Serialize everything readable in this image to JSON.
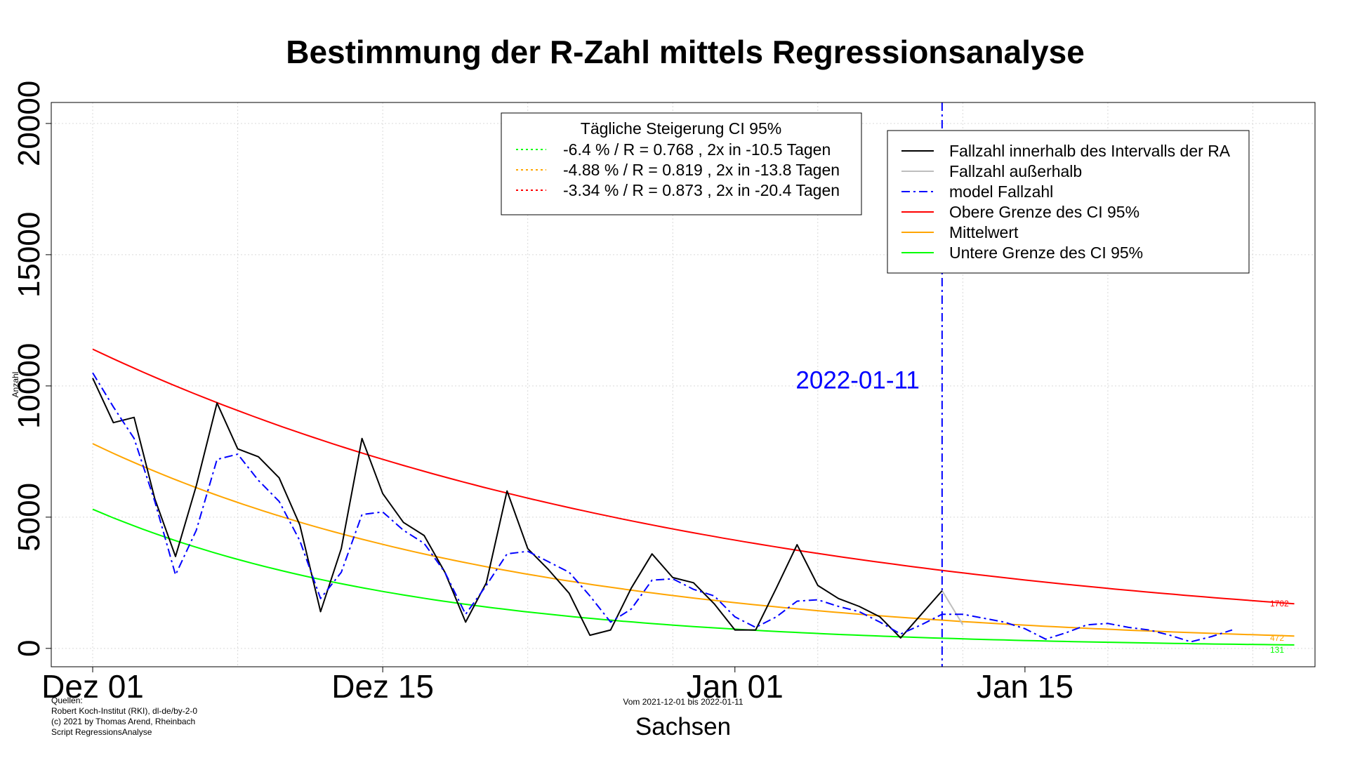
{
  "chart_data": {
    "type": "line",
    "title": "Bestimmung der R-Zahl mittels Regressionsanalyse",
    "ylabel": "Anzahl",
    "xlabel": "Sachsen",
    "subtitle": "Vom 2021-12-01 bis 2022-01-11",
    "xlim": [
      "2021-11-29",
      "2022-01-29"
    ],
    "ylim": [
      -700,
      20800
    ],
    "x_ticks": [
      {
        "date": "2021-12-01",
        "label": "Dez 01"
      },
      {
        "date": "2021-12-15",
        "label": "Dez 15"
      },
      {
        "date": "2022-01-01",
        "label": "Jan 01"
      },
      {
        "date": "2022-01-15",
        "label": "Jan 15"
      }
    ],
    "x_grid": [
      "2021-12-01",
      "2021-12-08",
      "2021-12-15",
      "2021-12-22",
      "2021-12-29",
      "2022-01-05",
      "2022-01-12",
      "2022-01-19",
      "2022-01-26"
    ],
    "y_ticks": [
      0,
      5000,
      10000,
      15000,
      20000
    ],
    "grid": true,
    "vline": {
      "date": "2022-01-11",
      "label": "2022-01-11",
      "color": "#0000ff"
    },
    "series": [
      {
        "name": "Fallzahl innerhalb des Intervalls der RA",
        "color": "#000000",
        "style": "solid",
        "start": "2021-12-01",
        "values": [
          10300,
          8600,
          8800,
          5700,
          3500,
          6200,
          9350,
          7600,
          7300,
          6500,
          4700,
          1400,
          3800,
          8000,
          5900,
          4800,
          4300,
          2900,
          1000,
          2500,
          6000,
          3800,
          3000,
          2100,
          500,
          700,
          2300,
          3600,
          2700,
          2500,
          1700,
          700,
          700,
          2300,
          3950,
          2400,
          1900,
          1600,
          1200,
          400,
          1300,
          2200
        ]
      },
      {
        "name": "Fallzahl außerhalb",
        "color": "#bebebe",
        "style": "solid",
        "start": "2022-01-11",
        "values": [
          2200,
          900
        ]
      },
      {
        "name": "model Fallzahl",
        "color": "#0000ff",
        "style": "dashdot",
        "start": "2021-12-01",
        "values": [
          10500,
          9200,
          8000,
          5600,
          2800,
          4500,
          7200,
          7400,
          6400,
          5600,
          4100,
          1900,
          2900,
          5100,
          5200,
          4500,
          4000,
          2900,
          1300,
          2400,
          3600,
          3700,
          3300,
          2900,
          2000,
          1000,
          1500,
          2600,
          2650,
          2250,
          2000,
          1200,
          800,
          1200,
          1800,
          1850,
          1600,
          1400,
          1000,
          550,
          900,
          1300,
          1300,
          1150,
          1000,
          750,
          350,
          600,
          900,
          950,
          800,
          700,
          500,
          250,
          450,
          700
        ]
      },
      {
        "name": "Obere Grenze des CI 95%",
        "color": "#ff0000",
        "style": "solid",
        "start": "2021-12-01",
        "curve": {
          "start_value": 11400,
          "end_value": 1702,
          "days": 58
        }
      },
      {
        "name": "Mittelwert",
        "color": "#ffa500",
        "style": "solid",
        "start": "2021-12-01",
        "curve": {
          "start_value": 7800,
          "end_value": 472,
          "days": 58
        }
      },
      {
        "name": "Untere Grenze des CI 95%",
        "color": "#00ff00",
        "style": "solid",
        "start": "2021-12-01",
        "curve": {
          "start_value": 5300,
          "end_value": 131,
          "days": 58
        }
      }
    ],
    "end_labels": [
      {
        "text": "1702",
        "value": 1702,
        "color": "#ff0000"
      },
      {
        "text": "472",
        "value": 472,
        "color": "#ffa500"
      },
      {
        "text": "131",
        "value": 131,
        "color": "#00ff00"
      }
    ],
    "legend_ci": {
      "placement": "top-center",
      "title": "Tägliche Steigerung CI  95%",
      "items": [
        {
          "text": "-6.4 % / R = 0.768 , 2x in -10.5 Tagen",
          "color": "#00ff00"
        },
        {
          "text": "-4.88 % / R = 0.819 , 2x in -13.8 Tagen",
          "color": "#ffa500"
        },
        {
          "text": "-3.34 % / R = 0.873 , 2x in -20.4 Tagen",
          "color": "#ff0000"
        }
      ]
    },
    "legend_series": {
      "placement": "top-right",
      "items": [
        {
          "text": "Fallzahl innerhalb des Intervalls der RA",
          "color": "#000000",
          "style": "solid"
        },
        {
          "text": "Fallzahl außerhalb",
          "color": "#bebebe",
          "style": "solid"
        },
        {
          "text": "model Fallzahl",
          "color": "#0000ff",
          "style": "dashdot"
        },
        {
          "text": "Obere Grenze des CI 95%",
          "color": "#ff0000",
          "style": "solid"
        },
        {
          "text": "Mittelwert",
          "color": "#ffa500",
          "style": "solid"
        },
        {
          "text": "Untere Grenze des CI 95%",
          "color": "#00ff00",
          "style": "solid"
        }
      ]
    },
    "sources": [
      "Quellen:",
      "Robert Koch-Institut (RKI), dl-de/by-2-0",
      "(c) 2021 by Thomas Arend, Rheinbach",
      "Script RegressionsAnalyse"
    ]
  }
}
